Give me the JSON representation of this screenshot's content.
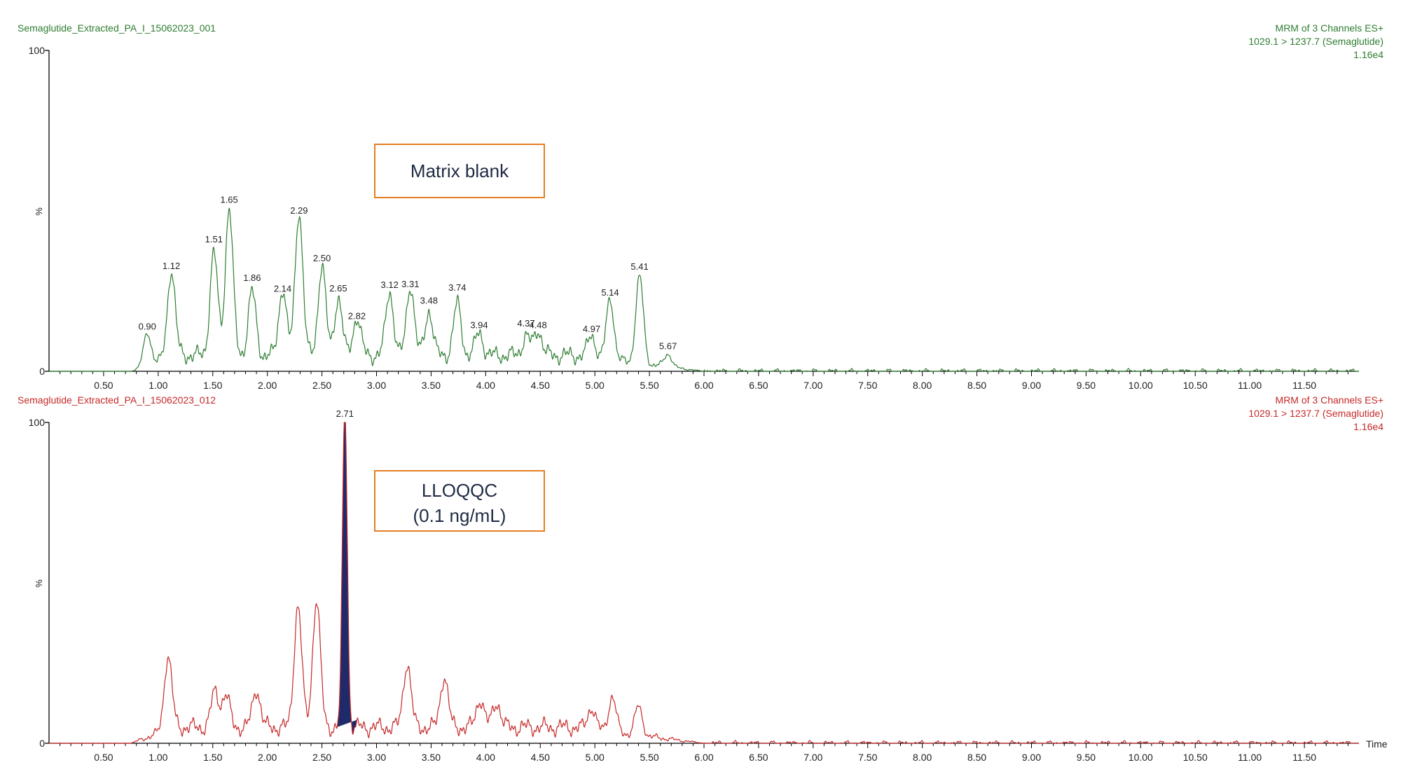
{
  "chart_data": [
    {
      "type": "line",
      "panel": "top",
      "sample_name": "Semaglutide_Extracted_PA_I_15062023_001",
      "header_lines": [
        "MRM of 3 Channels ES+",
        "1029.1 > 1237.7 (Semaglutide)",
        "1.16e4"
      ],
      "annotation": "Matrix blank",
      "ylabel": "%",
      "xlabel": "",
      "xlim": [
        0,
        12.0
      ],
      "ylim": [
        0,
        100
      ],
      "y_ticks": [
        "100",
        "0"
      ],
      "x_ticks": [
        "0.50",
        "1.00",
        "1.50",
        "2.00",
        "2.50",
        "3.00",
        "3.50",
        "4.00",
        "4.50",
        "5.00",
        "5.50",
        "6.00",
        "6.50",
        "7.00",
        "7.50",
        "8.00",
        "8.50",
        "9.00",
        "9.50",
        "10.00",
        "10.50",
        "11.00",
        "11.50"
      ],
      "grid": false,
      "color": "#2e7d32",
      "peaks": [
        {
          "x": 0.9,
          "y": 10,
          "label": "0.90"
        },
        {
          "x": 1.12,
          "y": 27,
          "label": "1.12"
        },
        {
          "x": 1.51,
          "y": 32,
          "label": "1.51"
        },
        {
          "x": 1.65,
          "y": 46,
          "label": "1.65"
        },
        {
          "x": 1.86,
          "y": 20,
          "label": "1.86"
        },
        {
          "x": 2.14,
          "y": 21,
          "label": "2.14"
        },
        {
          "x": 2.29,
          "y": 45,
          "label": "2.29"
        },
        {
          "x": 2.5,
          "y": 28,
          "label": "2.50"
        },
        {
          "x": 2.65,
          "y": 18,
          "label": "2.65"
        },
        {
          "x": 2.82,
          "y": 12,
          "label": "2.82"
        },
        {
          "x": 3.12,
          "y": 20,
          "label": "3.12"
        },
        {
          "x": 3.31,
          "y": 22,
          "label": "3.31"
        },
        {
          "x": 3.48,
          "y": 14,
          "label": "3.48"
        },
        {
          "x": 3.74,
          "y": 16,
          "label": "3.74"
        },
        {
          "x": 3.94,
          "y": 7,
          "label": "3.94"
        },
        {
          "x": 4.37,
          "y": 6,
          "label": "4.37"
        },
        {
          "x": 4.48,
          "y": 8,
          "label": "4.48"
        },
        {
          "x": 4.97,
          "y": 7,
          "label": "4.97"
        },
        {
          "x": 5.14,
          "y": 19,
          "label": "5.14"
        },
        {
          "x": 5.41,
          "y": 27,
          "label": "5.41"
        },
        {
          "x": 5.67,
          "y": 4,
          "label": "5.67"
        }
      ]
    },
    {
      "type": "line",
      "panel": "bottom",
      "sample_name": "Semaglutide_Extracted_PA_I_15062023_012",
      "header_lines": [
        "MRM of 3 Channels ES+",
        "1029.1 > 1237.7 (Semaglutide)",
        "1.16e4"
      ],
      "annotation_lines": [
        "LLOQQC",
        "(0.1 ng/mL)"
      ],
      "ylabel": "%",
      "xlabel": "Time",
      "xlim": [
        0,
        12.0
      ],
      "ylim": [
        0,
        100
      ],
      "y_ticks": [
        "100",
        "0"
      ],
      "x_ticks": [
        "0.50",
        "1.00",
        "1.50",
        "2.00",
        "2.50",
        "3.00",
        "3.50",
        "4.00",
        "4.50",
        "5.00",
        "5.50",
        "6.00",
        "6.50",
        "7.00",
        "7.50",
        "8.00",
        "8.50",
        "9.00",
        "9.50",
        "10.00",
        "10.50",
        "11.00",
        "11.50"
      ],
      "grid": false,
      "color": "#c62828",
      "integrated_fill": "#1f2a6b",
      "integrated_range": [
        2.63,
        2.82
      ],
      "main_peak": {
        "x": 2.71,
        "y": 100,
        "label": "2.71"
      },
      "peaks": [
        {
          "x": 1.09,
          "y": 23
        },
        {
          "x": 1.52,
          "y": 11
        },
        {
          "x": 1.62,
          "y": 10
        },
        {
          "x": 1.9,
          "y": 12
        },
        {
          "x": 2.28,
          "y": 38
        },
        {
          "x": 2.45,
          "y": 40
        },
        {
          "x": 3.28,
          "y": 20
        },
        {
          "x": 3.62,
          "y": 16
        },
        {
          "x": 3.95,
          "y": 9
        },
        {
          "x": 4.1,
          "y": 8
        },
        {
          "x": 4.97,
          "y": 7
        },
        {
          "x": 5.16,
          "y": 11
        },
        {
          "x": 5.4,
          "y": 9
        }
      ]
    }
  ]
}
